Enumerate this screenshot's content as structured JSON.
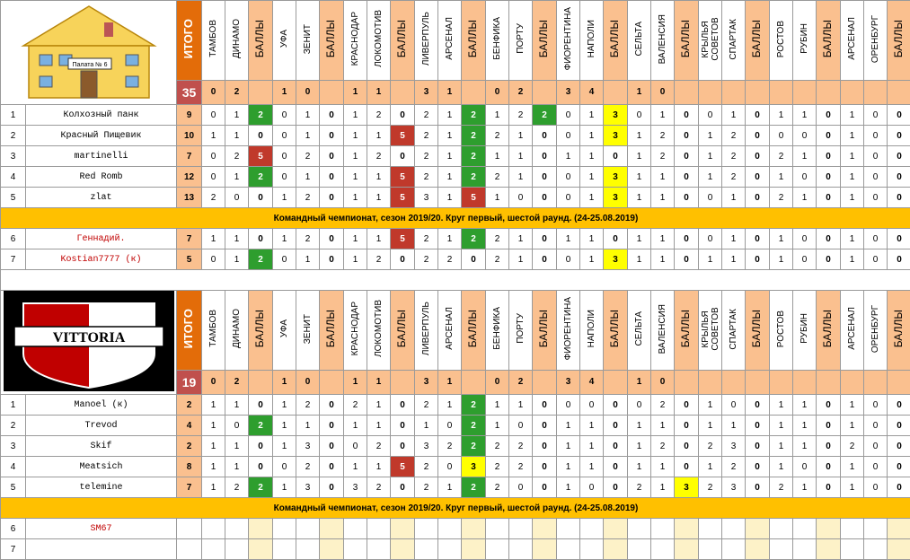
{
  "columns": {
    "itogo": "ИТОГО",
    "points": "БАЛЛЫ",
    "teams": [
      "ТАМБОВ",
      "ДИНАМО",
      "УФА",
      "ЗЕНИТ",
      "КРАСНОДАР",
      "ЛОКОМОТИВ",
      "ЛИВЕРПУЛЬ",
      "АРСЕНАЛ",
      "БЕНФИКА",
      "ПОРТУ",
      "ФИОРЕНТИНА",
      "НАПОЛИ",
      "СЕЛЬТА",
      "ВАЛЕНСИЯ",
      "КРЫЛЬЯ СОВЕТОВ",
      "СПАРТАК",
      "РОСТОВ",
      "РУБИН",
      "АРСЕНАЛ",
      "ОРЕНБУРГ"
    ]
  },
  "results": [
    [
      "0",
      "2"
    ],
    [
      "1",
      "0"
    ],
    [
      "1",
      "1"
    ],
    [
      "3",
      "1"
    ],
    [
      "0",
      "2"
    ],
    [
      "3",
      "4"
    ],
    [
      "1",
      "0"
    ],
    [
      "",
      ""
    ],
    [
      "",
      ""
    ],
    [
      "",
      ""
    ]
  ],
  "logos": {
    "team1_sign": "Палата № 6",
    "team2": "VITTORIA"
  },
  "team1": {
    "total": "35",
    "players": [
      {
        "n": "1",
        "name": "Колхозный панк",
        "total": "9",
        "m": [
          [
            "0",
            "1",
            "2"
          ],
          [
            "0",
            "1",
            "0"
          ],
          [
            "1",
            "2",
            "0"
          ],
          [
            "2",
            "1",
            "2"
          ],
          [
            "1",
            "2",
            "2"
          ],
          [
            "0",
            "1",
            "3"
          ],
          [
            "0",
            "1",
            "0"
          ],
          [
            "0",
            "1",
            "0"
          ],
          [
            "1",
            "1",
            "0"
          ],
          [
            "1",
            "0",
            "0"
          ]
        ]
      },
      {
        "n": "2",
        "name": "Красный Пищевик",
        "total": "10",
        "m": [
          [
            "1",
            "1",
            "0"
          ],
          [
            "0",
            "1",
            "0"
          ],
          [
            "1",
            "1",
            "5"
          ],
          [
            "2",
            "1",
            "2"
          ],
          [
            "2",
            "1",
            "0"
          ],
          [
            "0",
            "1",
            "3"
          ],
          [
            "1",
            "2",
            "0"
          ],
          [
            "1",
            "2",
            "0"
          ],
          [
            "0",
            "0",
            "0"
          ],
          [
            "1",
            "0",
            "0"
          ]
        ]
      },
      {
        "n": "3",
        "name": "martinelli",
        "total": "7",
        "m": [
          [
            "0",
            "2",
            "5"
          ],
          [
            "0",
            "2",
            "0"
          ],
          [
            "1",
            "2",
            "0"
          ],
          [
            "2",
            "1",
            "2"
          ],
          [
            "1",
            "1",
            "0"
          ],
          [
            "1",
            "1",
            "0"
          ],
          [
            "1",
            "2",
            "0"
          ],
          [
            "1",
            "2",
            "0"
          ],
          [
            "2",
            "1",
            "0"
          ],
          [
            "1",
            "0",
            "0"
          ]
        ]
      },
      {
        "n": "4",
        "name": "Red Romb",
        "total": "12",
        "m": [
          [
            "0",
            "1",
            "2"
          ],
          [
            "0",
            "1",
            "0"
          ],
          [
            "1",
            "1",
            "5"
          ],
          [
            "2",
            "1",
            "2"
          ],
          [
            "2",
            "1",
            "0"
          ],
          [
            "0",
            "1",
            "3"
          ],
          [
            "1",
            "1",
            "0"
          ],
          [
            "1",
            "2",
            "0"
          ],
          [
            "1",
            "0",
            "0"
          ],
          [
            "1",
            "0",
            "0"
          ]
        ]
      },
      {
        "n": "5",
        "name": "zlat",
        "total": "13",
        "m": [
          [
            "2",
            "0",
            "0"
          ],
          [
            "1",
            "2",
            "0"
          ],
          [
            "1",
            "1",
            "5"
          ],
          [
            "3",
            "1",
            "5"
          ],
          [
            "1",
            "0",
            "0"
          ],
          [
            "0",
            "1",
            "3"
          ],
          [
            "1",
            "1",
            "0"
          ],
          [
            "0",
            "1",
            "0"
          ],
          [
            "2",
            "1",
            "0"
          ],
          [
            "1",
            "0",
            "0"
          ]
        ]
      }
    ],
    "banner": "Командный чемпионат, сезон 2019/20. Круг первый, шестой раунд. (24-25.08.2019)",
    "reserves": [
      {
        "n": "6",
        "name": "Геннадий.",
        "total": "7",
        "m": [
          [
            "1",
            "1",
            "0"
          ],
          [
            "1",
            "2",
            "0"
          ],
          [
            "1",
            "1",
            "5"
          ],
          [
            "2",
            "1",
            "2"
          ],
          [
            "2",
            "1",
            "0"
          ],
          [
            "1",
            "1",
            "0"
          ],
          [
            "1",
            "1",
            "0"
          ],
          [
            "0",
            "1",
            "0"
          ],
          [
            "1",
            "0",
            "0"
          ],
          [
            "1",
            "0",
            "0"
          ]
        ]
      },
      {
        "n": "7",
        "name": "Kostian7777 (к)",
        "total": "5",
        "m": [
          [
            "0",
            "1",
            "2"
          ],
          [
            "0",
            "1",
            "0"
          ],
          [
            "1",
            "2",
            "0"
          ],
          [
            "2",
            "2",
            "0"
          ],
          [
            "2",
            "1",
            "0"
          ],
          [
            "0",
            "1",
            "3"
          ],
          [
            "1",
            "1",
            "0"
          ],
          [
            "1",
            "1",
            "0"
          ],
          [
            "1",
            "0",
            "0"
          ],
          [
            "1",
            "0",
            "0"
          ]
        ]
      }
    ]
  },
  "team2": {
    "total": "19",
    "players": [
      {
        "n": "1",
        "name": "Manoel (к)",
        "total": "2",
        "m": [
          [
            "1",
            "1",
            "0"
          ],
          [
            "1",
            "2",
            "0"
          ],
          [
            "2",
            "1",
            "0"
          ],
          [
            "2",
            "1",
            "2"
          ],
          [
            "1",
            "1",
            "0"
          ],
          [
            "0",
            "0",
            "0"
          ],
          [
            "0",
            "2",
            "0"
          ],
          [
            "1",
            "0",
            "0"
          ],
          [
            "1",
            "1",
            "0"
          ],
          [
            "1",
            "0",
            "0"
          ]
        ]
      },
      {
        "n": "2",
        "name": "Trevod",
        "total": "4",
        "m": [
          [
            "1",
            "0",
            "2"
          ],
          [
            "1",
            "1",
            "0"
          ],
          [
            "1",
            "1",
            "0"
          ],
          [
            "1",
            "0",
            "2"
          ],
          [
            "1",
            "0",
            "0"
          ],
          [
            "1",
            "1",
            "0"
          ],
          [
            "1",
            "1",
            "0"
          ],
          [
            "1",
            "1",
            "0"
          ],
          [
            "1",
            "1",
            "0"
          ],
          [
            "1",
            "0",
            "0"
          ]
        ]
      },
      {
        "n": "3",
        "name": "Skif",
        "total": "2",
        "m": [
          [
            "1",
            "1",
            "0"
          ],
          [
            "1",
            "3",
            "0"
          ],
          [
            "0",
            "2",
            "0"
          ],
          [
            "3",
            "2",
            "2"
          ],
          [
            "2",
            "2",
            "0"
          ],
          [
            "1",
            "1",
            "0"
          ],
          [
            "1",
            "2",
            "0"
          ],
          [
            "2",
            "3",
            "0"
          ],
          [
            "1",
            "1",
            "0"
          ],
          [
            "2",
            "0",
            "0"
          ]
        ]
      },
      {
        "n": "4",
        "name": "Meatsich",
        "total": "8",
        "m": [
          [
            "1",
            "1",
            "0"
          ],
          [
            "0",
            "2",
            "0"
          ],
          [
            "1",
            "1",
            "5"
          ],
          [
            "2",
            "0",
            "3"
          ],
          [
            "2",
            "2",
            "0"
          ],
          [
            "1",
            "1",
            "0"
          ],
          [
            "1",
            "1",
            "0"
          ],
          [
            "1",
            "2",
            "0"
          ],
          [
            "1",
            "0",
            "0"
          ],
          [
            "1",
            "0",
            "0"
          ]
        ]
      },
      {
        "n": "5",
        "name": "telemine",
        "total": "7",
        "m": [
          [
            "1",
            "2",
            "2"
          ],
          [
            "1",
            "3",
            "0"
          ],
          [
            "3",
            "2",
            "0"
          ],
          [
            "2",
            "1",
            "2"
          ],
          [
            "2",
            "0",
            "0"
          ],
          [
            "1",
            "0",
            "0"
          ],
          [
            "2",
            "1",
            "3"
          ],
          [
            "2",
            "3",
            "0"
          ],
          [
            "2",
            "1",
            "0"
          ],
          [
            "1",
            "0",
            "0"
          ]
        ]
      }
    ],
    "banner": "Командный чемпионат, сезон 2019/20. Круг первый, шестой раунд. (24-25.08.2019)",
    "reserves": [
      {
        "n": "6",
        "name": "SM67",
        "total": "",
        "m": []
      },
      {
        "n": "7",
        "name": "",
        "total": "",
        "m": []
      }
    ]
  }
}
